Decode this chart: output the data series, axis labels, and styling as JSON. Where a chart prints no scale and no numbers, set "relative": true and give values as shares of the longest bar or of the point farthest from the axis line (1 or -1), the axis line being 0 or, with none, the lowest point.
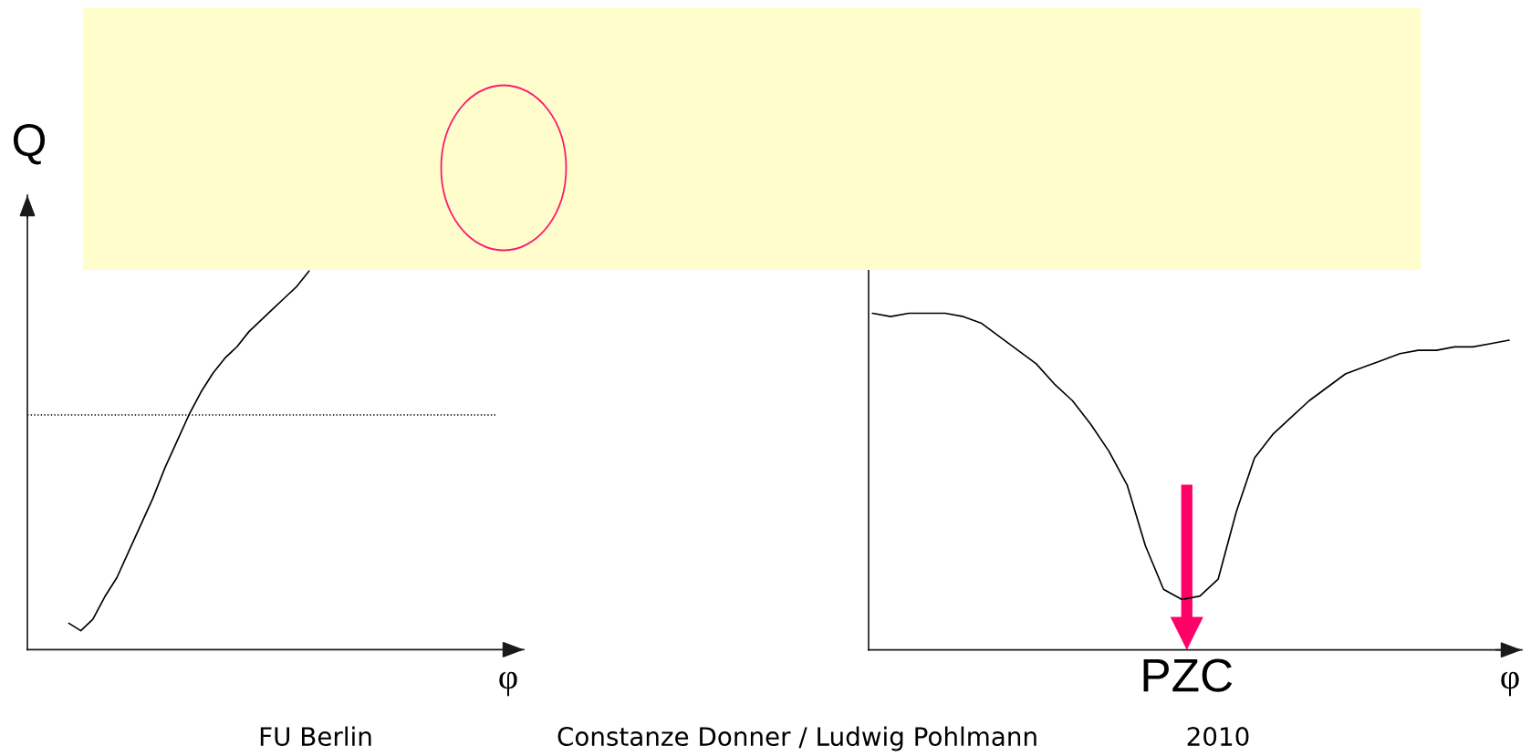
{
  "chart_data": [
    {
      "type": "line",
      "ylabel": "Q",
      "xlabel": "φ",
      "relative": true,
      "categories": [
        null,
        null,
        null,
        null,
        null,
        null,
        null,
        null,
        null,
        null,
        null,
        null,
        null,
        null,
        null,
        null,
        null,
        null,
        null,
        null,
        null
      ],
      "series": [
        {
          "color": "#000000",
          "values": [
            0.07,
            0.05,
            0.08,
            0.14,
            0.19,
            0.26,
            0.33,
            0.4,
            0.48,
            0.55,
            0.62,
            0.68,
            0.73,
            0.77,
            0.8,
            0.84,
            0.87,
            0.9,
            0.93,
            0.96,
            1.0
          ]
        }
      ],
      "ref_lines": [
        {
          "axis": "y",
          "value": 0.62,
          "color": "#000000",
          "line_style": "dotted"
        }
      ],
      "annotations": [
        "FU Berlin",
        "Constanze Donner / Ludwig Pohlmann",
        "2010"
      ]
    },
    {
      "type": "line",
      "xlabel": "φ",
      "relative": true,
      "categories": [
        null,
        null,
        null,
        null,
        null,
        null,
        null,
        null,
        null,
        null,
        null,
        null,
        null,
        null,
        null,
        null,
        null,
        null,
        null,
        null,
        null,
        null,
        null,
        null,
        null,
        null,
        null,
        null,
        null,
        null,
        null,
        null,
        null,
        null,
        null,
        null
      ],
      "series": [
        {
          "color": "#000000",
          "values": [
            1.0,
            0.99,
            1.0,
            1.0,
            1.0,
            0.99,
            0.97,
            0.93,
            0.89,
            0.85,
            0.79,
            0.74,
            0.67,
            0.59,
            0.49,
            0.31,
            0.18,
            0.15,
            0.16,
            0.21,
            0.41,
            0.57,
            0.64,
            0.69,
            0.74,
            0.78,
            0.82,
            0.84,
            0.86,
            0.88,
            0.89,
            0.89,
            0.9,
            0.9,
            0.91,
            0.92
          ]
        }
      ],
      "annotations": [
        "PZC"
      ]
    }
  ]
}
